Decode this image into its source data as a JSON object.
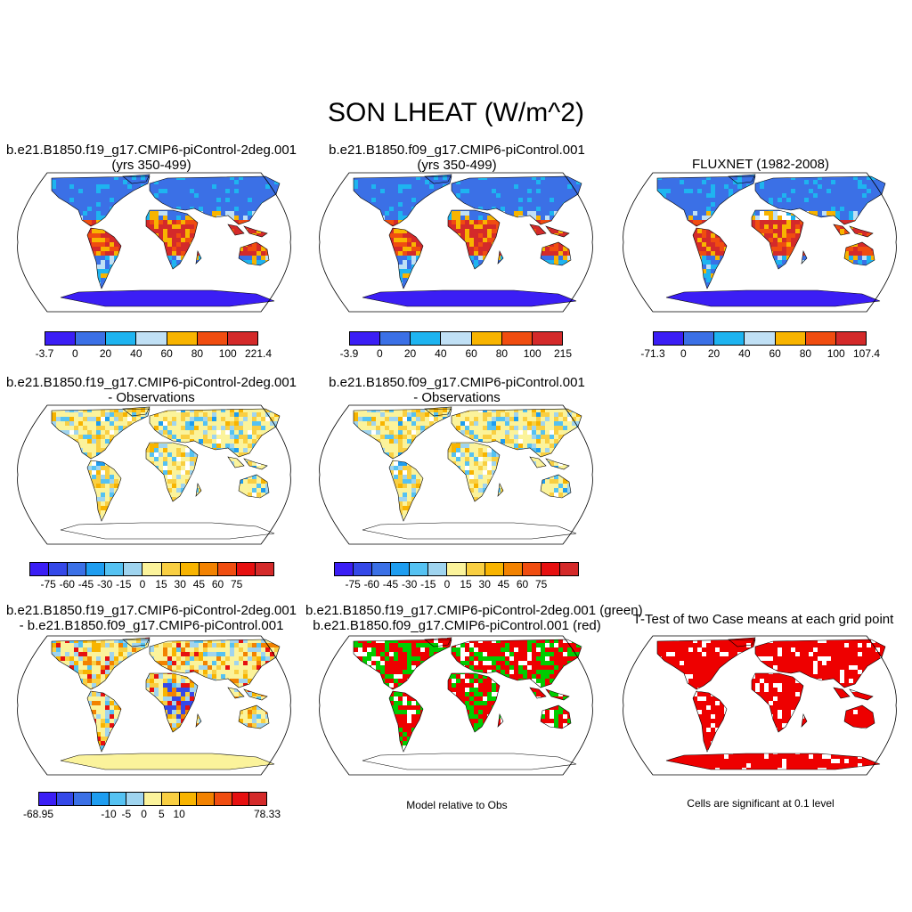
{
  "title": "SON LHEAT (W/m^2)",
  "colors": {
    "abs_scale": [
      "#3b1ef5",
      "#3b70e6",
      "#1eb4f0",
      "#c0e0f5",
      "#f8b400",
      "#f04d10",
      "#d42a2a"
    ],
    "diff_scale": [
      "#3b1ef5",
      "#3448e8",
      "#3b70e6",
      "#1e9df0",
      "#55c2f2",
      "#9fd4ef",
      "#fbf39b",
      "#f9cf42",
      "#f8b400",
      "#f28200",
      "#f04d10",
      "#e61010",
      "#d42a2a"
    ],
    "case1_color": "#00cc00",
    "case2_color": "#ee0000",
    "ttest_color": "#ee0000",
    "ocean": "#ffffff",
    "coast": "#000000"
  },
  "panels": [
    {
      "id": "p1",
      "title_line1": "b.e21.B1850.f19_g17.CMIP6-piControl-2deg.001",
      "title_line2": "(yrs 350-499)",
      "map_type": "abs_case1",
      "colorbar": {
        "scale": "abs_scale",
        "labels": [
          "-3.7",
          "0",
          "20",
          "40",
          "60",
          "80",
          "100",
          "221.4"
        ]
      }
    },
    {
      "id": "p2",
      "title_line1": "b.e21.B1850.f09_g17.CMIP6-piControl.001",
      "title_line2": "(yrs 350-499)",
      "map_type": "abs_case2",
      "colorbar": {
        "scale": "abs_scale",
        "labels": [
          "-3.9",
          "0",
          "20",
          "40",
          "60",
          "80",
          "100",
          "215"
        ]
      }
    },
    {
      "id": "p3",
      "title_line1": "FLUXNET (1982-2008)",
      "title_line2": "",
      "map_type": "abs_obs",
      "colorbar": {
        "scale": "abs_scale",
        "labels": [
          "-71.3",
          "0",
          "20",
          "40",
          "60",
          "80",
          "100",
          "107.4"
        ]
      }
    },
    {
      "id": "p4",
      "title_line1": "b.e21.B1850.f19_g17.CMIP6-piControl-2deg.001",
      "title_line2": "- Observations",
      "map_type": "diff_obs1",
      "colorbar": {
        "scale": "diff_scale",
        "labels": [
          "-75",
          "-60",
          "-45",
          "-30",
          "-15",
          "0",
          "15",
          "30",
          "45",
          "60",
          "75"
        ]
      }
    },
    {
      "id": "p5",
      "title_line1": "b.e21.B1850.f09_g17.CMIP6-piControl.001",
      "title_line2": "- Observations",
      "map_type": "diff_obs2",
      "colorbar": {
        "scale": "diff_scale",
        "labels": [
          "-75",
          "-60",
          "-45",
          "-30",
          "-15",
          "0",
          "15",
          "30",
          "45",
          "60",
          "75"
        ]
      }
    },
    {
      "id": "p7",
      "title_line1": "b.e21.B1850.f19_g17.CMIP6-piControl-2deg.001",
      "title_line2": "- b.e21.B1850.f09_g17.CMIP6-piControl.001",
      "map_type": "diff_cases",
      "colorbar": {
        "scale": "diff_scale",
        "labels": [
          "-68.95",
          "",
          "-10",
          "-5",
          "0",
          "5",
          "10",
          "",
          "78.33"
        ]
      }
    },
    {
      "id": "p8",
      "title_line1": "b.e21.B1850.f19_g17.CMIP6-piControl-2deg.001 (green)",
      "title_line2": "b.e21.B1850.f09_g17.CMIP6-piControl.001 (red)",
      "map_type": "relative",
      "note": "Model relative to Obs"
    },
    {
      "id": "p9",
      "title_line1": "T-Test of two Case means at each grid point",
      "title_line2": "",
      "map_type": "ttest",
      "note": "Cells are significant at 0.1 level"
    }
  ]
}
